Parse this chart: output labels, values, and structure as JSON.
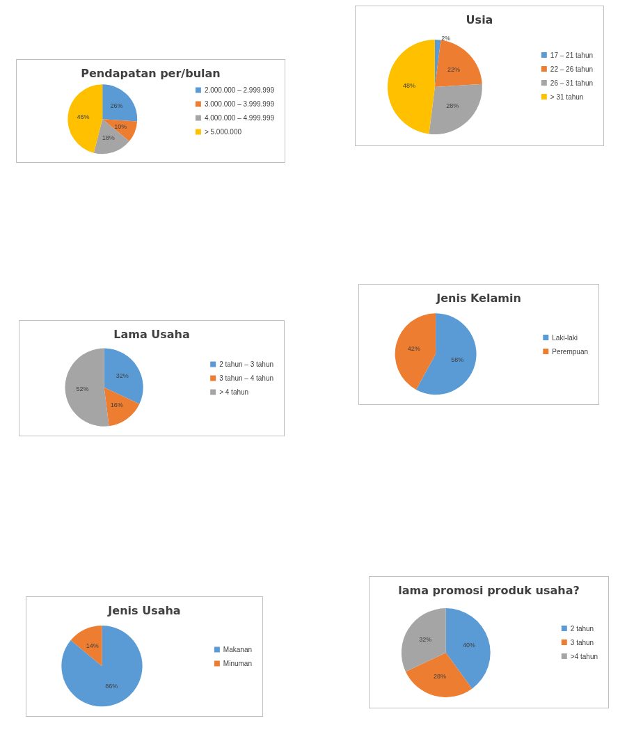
{
  "chart_data": [
    {
      "type": "pie",
      "title": "Pendapatan per/bulan",
      "categories": [
        "2.000.000 – 2.999.999",
        "3.000.000 – 3.999.999",
        "4.000.000 – 4.999.999",
        "> 5.000.000"
      ],
      "values": [
        26,
        10,
        18,
        46
      ],
      "value_labels": [
        "26%",
        "10%",
        "18%",
        "46%"
      ],
      "colors": [
        "#5b9bd5",
        "#ed7d31",
        "#a5a5a5",
        "#ffc000"
      ],
      "legend": "right"
    },
    {
      "type": "pie",
      "title": "Usia",
      "categories": [
        "17 – 21 tahun",
        "22 – 26 tahun",
        "26 – 31 tahun",
        "> 31 tahun"
      ],
      "values": [
        2,
        22,
        28,
        48
      ],
      "value_labels": [
        "2%",
        "22%",
        "28%",
        "48%"
      ],
      "colors": [
        "#5b9bd5",
        "#ed7d31",
        "#a5a5a5",
        "#ffc000"
      ],
      "legend": "right"
    },
    {
      "type": "pie",
      "title": "Lama Usaha",
      "categories": [
        "2 tahun – 3 tahun",
        "3 tahun – 4 tahun",
        "> 4 tahun"
      ],
      "values": [
        32,
        16,
        52
      ],
      "value_labels": [
        "32%",
        "16%",
        "52%"
      ],
      "colors": [
        "#5b9bd5",
        "#ed7d31",
        "#a5a5a5"
      ],
      "legend": "right"
    },
    {
      "type": "pie",
      "title": "Jenis Kelamin",
      "categories": [
        "Laki-laki",
        "Perempuan"
      ],
      "values": [
        58,
        42
      ],
      "value_labels": [
        "58%",
        "42%"
      ],
      "colors": [
        "#5b9bd5",
        "#ed7d31"
      ],
      "legend": "right"
    },
    {
      "type": "pie",
      "title": "Jenis Usaha",
      "categories": [
        "Makanan",
        "Minuman"
      ],
      "values": [
        86,
        14
      ],
      "value_labels": [
        "86%",
        "14%"
      ],
      "colors": [
        "#5b9bd5",
        "#ed7d31"
      ],
      "legend": "right"
    },
    {
      "type": "pie",
      "title": "lama promosi produk usaha?",
      "categories": [
        "2 tahun",
        "3 tahun",
        ">4 tahun"
      ],
      "values": [
        40,
        28,
        32
      ],
      "value_labels": [
        "40%",
        "28%",
        "32%"
      ],
      "colors": [
        "#5b9bd5",
        "#ed7d31",
        "#a5a5a5"
      ],
      "legend": "right"
    }
  ]
}
